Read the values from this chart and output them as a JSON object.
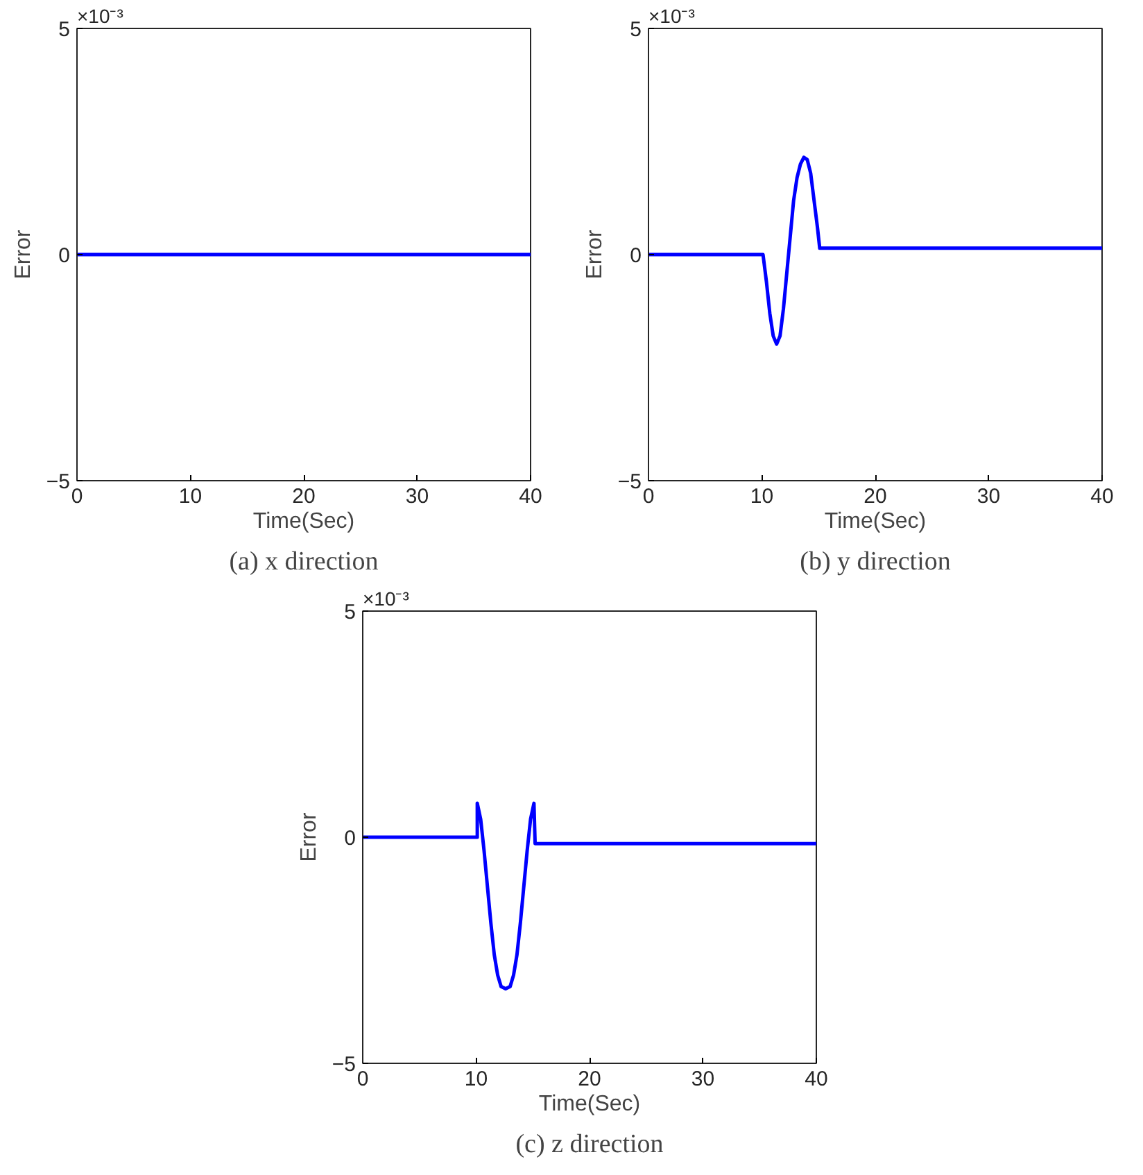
{
  "chart_data": [
    {
      "type": "line",
      "title": "(a) x direction",
      "xlabel": "Time(Sec)",
      "ylabel": "Error",
      "annotations": [
        "×10⁻³"
      ],
      "xlim": [
        0,
        40
      ],
      "ylim": [
        -5,
        5
      ],
      "xticks": [
        0,
        10,
        20,
        30,
        40
      ],
      "yticks": [
        -5,
        0,
        5
      ],
      "series": [
        {
          "color": "#0000ff",
          "x": [
            0,
            40
          ],
          "values": [
            0,
            0
          ]
        }
      ]
    },
    {
      "type": "line",
      "title": "(b) y direction",
      "xlabel": "Time(Sec)",
      "ylabel": "Error",
      "annotations": [
        "×10⁻³"
      ],
      "xlim": [
        0,
        40
      ],
      "ylim": [
        -5,
        5
      ],
      "xticks": [
        0,
        10,
        20,
        30,
        40
      ],
      "yticks": [
        -5,
        0,
        5
      ],
      "series": [
        {
          "color": "#0000ff",
          "x": [
            0,
            10.1,
            10.4,
            10.7,
            11.0,
            11.3,
            11.6,
            11.9,
            12.2,
            12.5,
            12.8,
            13.1,
            13.4,
            13.7,
            14.0,
            14.3,
            14.6,
            14.9,
            15.1,
            40
          ],
          "values": [
            0,
            0,
            -0.6,
            -1.3,
            -1.8,
            -1.98,
            -1.8,
            -1.2,
            -0.4,
            0.4,
            1.2,
            1.7,
            2.0,
            2.15,
            2.1,
            1.8,
            1.2,
            0.6,
            0.14,
            0.14
          ]
        }
      ]
    },
    {
      "type": "line",
      "title": "(c) z direction",
      "xlabel": "Time(Sec)",
      "ylabel": "Error",
      "annotations": [
        "×10⁻³"
      ],
      "xlim": [
        0,
        40
      ],
      "ylim": [
        -5,
        5
      ],
      "xticks": [
        0,
        10,
        20,
        30,
        40
      ],
      "yticks": [
        -5,
        0,
        5
      ],
      "series": [
        {
          "color": "#0000ff",
          "x": [
            0,
            10.1,
            10.1,
            10.4,
            10.7,
            11.0,
            11.3,
            11.6,
            11.9,
            12.2,
            12.6,
            13.0,
            13.3,
            13.6,
            13.9,
            14.2,
            14.5,
            14.8,
            15.1,
            15.2,
            40
          ],
          "values": [
            0,
            0,
            0.75,
            0.4,
            -0.3,
            -1.1,
            -1.9,
            -2.6,
            -3.05,
            -3.3,
            -3.35,
            -3.3,
            -3.05,
            -2.6,
            -1.9,
            -1.1,
            -0.3,
            0.4,
            0.75,
            -0.14,
            -0.14
          ]
        }
      ]
    }
  ]
}
